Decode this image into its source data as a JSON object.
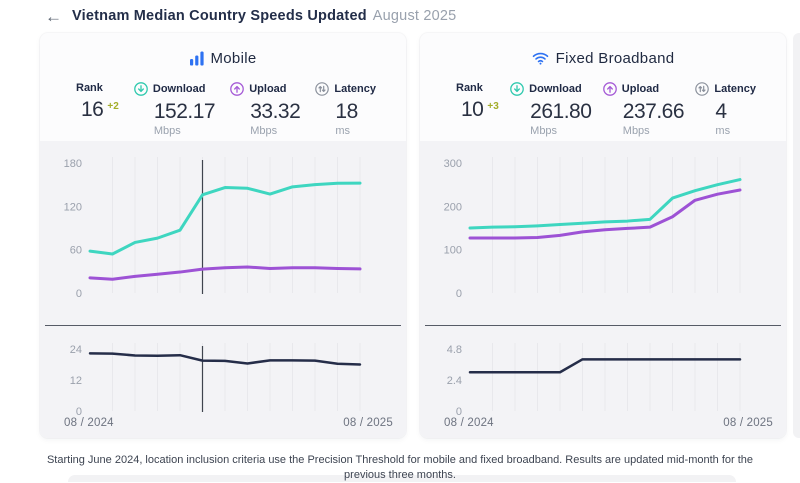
{
  "header": {
    "back_glyph": "←",
    "title": "Vietnam Median Country Speeds Updated",
    "title_suffix": "August 2025"
  },
  "colors": {
    "accent_blue": "#2e72f2",
    "download_teal": "#3ed6c0",
    "upload_purple": "#9d52d5",
    "latency_navy": "#252d49",
    "rank_delta_green": "#a3ad2a",
    "panel_gray": "#f3f3f6"
  },
  "cards": [
    {
      "name": "Mobile",
      "icon": "signal-bars-icon",
      "stats": [
        {
          "label": "Rank",
          "value": "16",
          "delta": "+2",
          "unit": ""
        },
        {
          "label": "Download",
          "icon": "download-icon",
          "value": "152.17",
          "unit": "Mbps"
        },
        {
          "label": "Upload",
          "icon": "upload-icon",
          "value": "33.32",
          "unit": "Mbps"
        },
        {
          "label": "Latency",
          "icon": "latency-icon",
          "value": "18",
          "unit": "ms"
        }
      ]
    },
    {
      "name": "Fixed Broadband",
      "icon": "wifi-icon",
      "stats": [
        {
          "label": "Rank",
          "value": "10",
          "delta": "+3",
          "unit": ""
        },
        {
          "label": "Download",
          "icon": "download-icon",
          "value": "261.80",
          "unit": "Mbps"
        },
        {
          "label": "Upload",
          "icon": "upload-icon",
          "value": "237.66",
          "unit": "Mbps"
        },
        {
          "label": "Latency",
          "icon": "latency-icon",
          "value": "4",
          "unit": "ms"
        }
      ]
    }
  ],
  "chart_data": [
    {
      "id": "mobile-speed",
      "type": "line",
      "kind": "speed",
      "x_labels": [
        "08 / 2024",
        "08 / 2025"
      ],
      "x_points": 13,
      "ylim": [
        0,
        180
      ],
      "yticks": [
        180,
        120,
        60,
        0
      ],
      "unit": "Mbps",
      "cursor_index": 5,
      "series": [
        {
          "name": "Download",
          "color": "#3ed6c0",
          "values": [
            58,
            54,
            70,
            76,
            87,
            136,
            146,
            145,
            137,
            147,
            150,
            152,
            152.17
          ]
        },
        {
          "name": "Upload",
          "color": "#9d52d5",
          "values": [
            21,
            19,
            23,
            26,
            29,
            33,
            35,
            36,
            34,
            35,
            35,
            34,
            33.32
          ]
        }
      ]
    },
    {
      "id": "mobile-latency",
      "type": "line",
      "kind": "lat",
      "x_labels": [
        "08 / 2024",
        "08 / 2025"
      ],
      "x_points": 13,
      "ylim": [
        0,
        24
      ],
      "yticks": [
        24,
        12,
        0
      ],
      "unit": "ms",
      "cursor_index": 5,
      "series": [
        {
          "name": "Latency",
          "color": "#252d49",
          "values": [
            22.3,
            22.2,
            21.5,
            21.4,
            21.6,
            19.5,
            19.4,
            18.4,
            19.6,
            19.6,
            19.5,
            18.3,
            18
          ]
        }
      ]
    },
    {
      "id": "fixed-speed",
      "type": "line",
      "kind": "speed",
      "x_labels": [
        "08 / 2024",
        "08 / 2025"
      ],
      "x_points": 13,
      "ylim": [
        0,
        300
      ],
      "yticks": [
        300,
        200,
        100,
        0
      ],
      "unit": "Mbps",
      "series": [
        {
          "name": "Download",
          "color": "#3ed6c0",
          "values": [
            150,
            152,
            153,
            155,
            158,
            161,
            164,
            166,
            170,
            219,
            236,
            250,
            261.8
          ]
        },
        {
          "name": "Upload",
          "color": "#9d52d5",
          "values": [
            127,
            127,
            127,
            128,
            133,
            141,
            146,
            149,
            152,
            176,
            214,
            228,
            237.66
          ]
        }
      ]
    },
    {
      "id": "fixed-latency",
      "type": "line",
      "kind": "lat",
      "x_labels": [
        "08 / 2024",
        "08 / 2025"
      ],
      "x_points": 13,
      "ylim": [
        0,
        4.8
      ],
      "yticks": [
        4.8,
        2.4,
        0
      ],
      "unit": "ms",
      "series": [
        {
          "name": "Latency",
          "color": "#252d49",
          "values": [
            3,
            3,
            3,
            3,
            3,
            4,
            4,
            4,
            4,
            4,
            4,
            4,
            4
          ]
        }
      ]
    }
  ],
  "footer": {
    "text": "Starting June 2024, location inclusion criteria use the Precision Threshold for mobile and fixed broadband. Results are updated mid-month for the previous three months."
  }
}
